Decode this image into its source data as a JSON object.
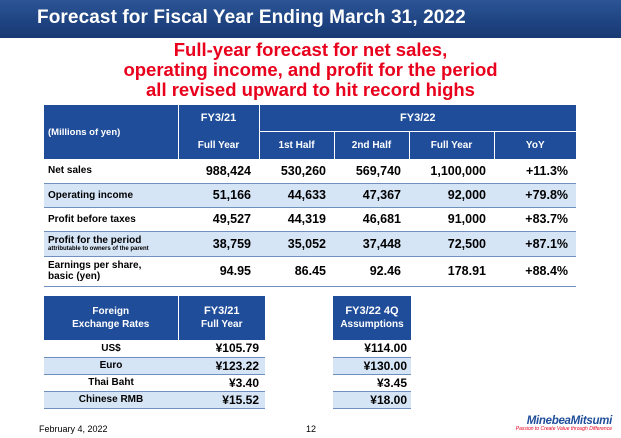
{
  "header": {
    "title": "Forecast for Fiscal Year Ending March 31, 2022"
  },
  "headline": {
    "line1": "Full-year forecast for net sales,",
    "line2": "operating income, and profit for the period",
    "line3": "all revised upward to hit record highs"
  },
  "forecast_table": {
    "unit_label": "(Millions of yen)",
    "group_fy21": "FY3/21",
    "group_fy22": "FY3/22",
    "columns": [
      "Full Year",
      "1st Half",
      "2nd Half",
      "Full Year",
      "YoY"
    ],
    "rows": [
      {
        "label": "Net sales",
        "sublabel": "",
        "values": [
          "988,424",
          "530,260",
          "569,740",
          "1,100,000",
          "+11.3%"
        ]
      },
      {
        "label": "Operating income",
        "sublabel": "",
        "values": [
          "51,166",
          "44,633",
          "47,367",
          "92,000",
          "+79.8%"
        ]
      },
      {
        "label": "Profit before taxes",
        "sublabel": "",
        "values": [
          "49,527",
          "44,319",
          "46,681",
          "91,000",
          "+83.7%"
        ]
      },
      {
        "label": "Profit for the period",
        "sublabel": "attributable to owners of the parent",
        "values": [
          "38,759",
          "35,052",
          "37,448",
          "72,500",
          "+87.1%"
        ]
      },
      {
        "label": "Earnings per share,",
        "sublabel": "basic  (yen)",
        "values": [
          "94.95",
          "86.45",
          "92.46",
          "178.91",
          "+88.4%"
        ]
      }
    ]
  },
  "fx_table": {
    "header_line1": "Foreign",
    "header_line2": "Exchange Rates",
    "fy21_line1": "FY3/21",
    "fy21_line2": "Full Year",
    "fy22_line1": "FY3/22 4Q",
    "fy22_line2": "Assumptions",
    "rows": [
      {
        "currency": "US$",
        "fy21": "¥105.79",
        "fy22": "¥114.00"
      },
      {
        "currency": "Euro",
        "fy21": "¥123.22",
        "fy22": "¥130.00"
      },
      {
        "currency": "Thai Baht",
        "fy21": "¥3.40",
        "fy22": "¥3.45"
      },
      {
        "currency": "Chinese RMB",
        "fy21": "¥15.52",
        "fy22": "¥18.00"
      }
    ]
  },
  "footer": {
    "date": "February 4, 2022",
    "page": "12",
    "logo": "MinebeaMitsumi",
    "tagline": "Passion to Create Value through Difference"
  },
  "colors": {
    "navy": "#1f4d9a",
    "red": "#e8001c",
    "alt_row": "#d6e5f6"
  }
}
